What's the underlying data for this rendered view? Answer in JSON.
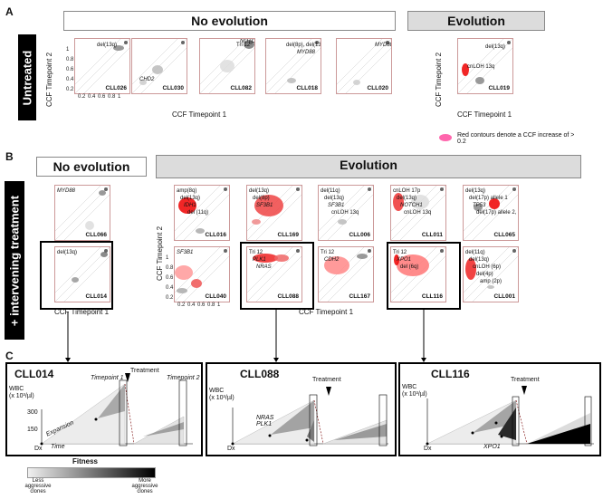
{
  "labels": {
    "A": "A",
    "B": "B",
    "C": "C"
  },
  "headers": {
    "no_evolution": "No evolution",
    "evolution": "Evolution"
  },
  "side": {
    "untreated": "Untreated",
    "intervening": "+ intervening treatment"
  },
  "axes": {
    "x": "CCF Timepoint 1",
    "y": "CCF Timepoint 2",
    "ticks_x": [
      "0.2",
      "0.4",
      "0.6",
      "0.8",
      "1"
    ],
    "ticks_y": [
      "0.2",
      "0.4",
      "0.6",
      "0.8",
      "1"
    ]
  },
  "legend_red": "Red contours denote a CCF increase of > 0.2",
  "panelsA": [
    {
      "id": "CLL026",
      "anns": [
        "del(13q)"
      ]
    },
    {
      "id": "CLL030",
      "anns": [
        "CHD2"
      ]
    },
    {
      "id": "CLL082",
      "anns": [
        "NOTCH1",
        "Tri 12"
      ]
    },
    {
      "id": "CLL018",
      "anns": [
        "del(8p), del(13q)",
        "MYD88"
      ]
    },
    {
      "id": "CLL020",
      "anns": [
        "MYD88"
      ]
    },
    {
      "id": "CLL019",
      "anns": [
        "del(13q)",
        "cnLOH 13q"
      ]
    }
  ],
  "panelsB": [
    {
      "id": "CLL066",
      "anns": [
        "MYD88"
      ]
    },
    {
      "id": "CLL014",
      "anns": [
        "del(13q)"
      ]
    },
    {
      "id": "CLL016",
      "anns": [
        "amp(8q)",
        "del(13q)",
        "IDH1",
        "del (11q)"
      ]
    },
    {
      "id": "CLL169",
      "anns": [
        "del(13q)",
        "del(8p)",
        "SF3B1"
      ]
    },
    {
      "id": "CLL006",
      "anns": [
        "del(11q)",
        "del(13q)",
        "SF3B1",
        "cnLOH 13q"
      ]
    },
    {
      "id": "CLL011",
      "anns": [
        "cnLOH 17p",
        "del(13q)",
        "NOTCH1",
        "cnLOH 13q"
      ]
    },
    {
      "id": "CLL065",
      "anns": [
        "del(13q)",
        "del(17p) allele 1",
        "TP53",
        "del(17p) allele 2, TP53"
      ]
    },
    {
      "id": "CLL040",
      "anns": [
        "SF3B1"
      ]
    },
    {
      "id": "CLL088",
      "anns": [
        "Tri 12",
        "PLK1",
        "NRAS"
      ]
    },
    {
      "id": "CLL167",
      "anns": [
        "Tri 12",
        "CDH2"
      ]
    },
    {
      "id": "CLL116",
      "anns": [
        "Tri 12",
        "XPO1",
        "del (6q)"
      ]
    },
    {
      "id": "CLL001",
      "anns": [
        "del(11q)",
        "del(13q)",
        "cnLOH (6p)",
        "del(4p)",
        "amp (2p)"
      ]
    }
  ],
  "clinical": [
    {
      "id": "CLL014",
      "ylab": "WBC",
      "yunit": "(x 10³/µl)",
      "yticks": [
        "300",
        "150"
      ],
      "treat": "Treatment",
      "tp1": "Timepoint 1",
      "tp2": "Timepoint 2",
      "exp": "Expansion",
      "time": "Time",
      "dx": "Dx"
    },
    {
      "id": "CLL088",
      "ylab": "WBC",
      "yunit": "(x 10³/µl)",
      "yticks": [
        "200",
        "150",
        "100",
        "50"
      ],
      "treat": "Treatment",
      "muts": "NRAS PLK1",
      "dx": "Dx"
    },
    {
      "id": "CLL116",
      "ylab": "WBC",
      "yunit": "(x 10³/µl)",
      "yticks": [
        "500",
        "400",
        "300",
        "200",
        "100"
      ],
      "treat": "Treatment",
      "muts": "XPO1",
      "dx": "Dx"
    }
  ],
  "fitness": {
    "title": "Fitness",
    "less": "Less aggressive clones",
    "more": "More aggressive clones"
  }
}
